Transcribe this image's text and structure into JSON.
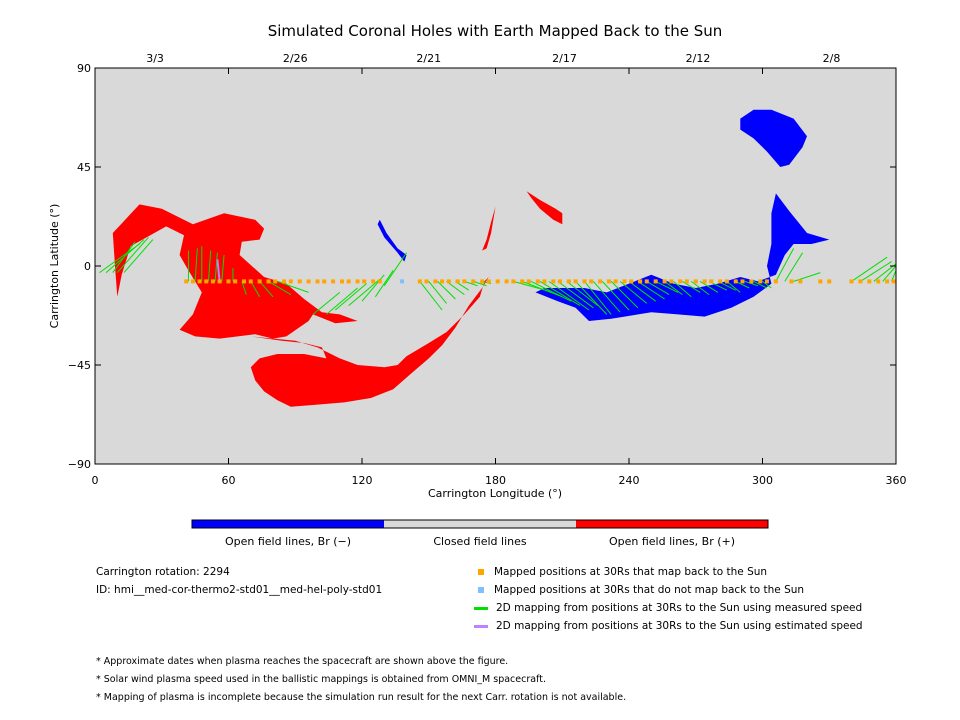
{
  "chart_data": {
    "type": "map",
    "title": "Simulated Coronal Holes with Earth Mapped Back to the Sun",
    "xlabel": "Carrington Longitude (°)",
    "ylabel": "Carrington Latitude (°)",
    "xlim": [
      0,
      360
    ],
    "ylim": [
      -90,
      90
    ],
    "x_ticks": [
      0,
      60,
      120,
      180,
      240,
      300,
      360
    ],
    "y_ticks": [
      {
        "value": 90,
        "label": "90"
      },
      {
        "value": 45,
        "label": "45"
      },
      {
        "value": 0,
        "label": "0"
      },
      {
        "value": -45,
        "label": "−45"
      },
      {
        "value": -90,
        "label": "−90"
      }
    ],
    "top_dates": [
      {
        "lon": 27,
        "label": "3/3"
      },
      {
        "lon": 90,
        "label": "2/26"
      },
      {
        "lon": 150,
        "label": "2/21"
      },
      {
        "lon": 211,
        "label": "2/17"
      },
      {
        "lon": 271,
        "label": "2/12"
      },
      {
        "lon": 331,
        "label": "2/8"
      }
    ],
    "background_color": "#d9d9d9",
    "colors": {
      "negative": "#0000ff",
      "positive": "#ff0000",
      "closed": "#d9d9d9",
      "mapped": "#ffa500",
      "unmapped": "#7fbfff",
      "measured": "#00e000",
      "estimated": "#c080ff"
    },
    "regions": [
      {
        "polarity": "positive",
        "points": [
          [
            8,
            15
          ],
          [
            20,
            28
          ],
          [
            30,
            26
          ],
          [
            44,
            19
          ],
          [
            58,
            24
          ],
          [
            72,
            21
          ],
          [
            76,
            17
          ],
          [
            74,
            12
          ],
          [
            66,
            11
          ],
          [
            65,
            5
          ],
          [
            76,
            -5
          ],
          [
            86,
            -8
          ],
          [
            94,
            -15
          ],
          [
            102,
            -21
          ],
          [
            110,
            -22
          ],
          [
            118,
            -25
          ],
          [
            108,
            -26
          ],
          [
            98,
            -22
          ],
          [
            96,
            -25
          ],
          [
            86,
            -32
          ],
          [
            80,
            -33
          ],
          [
            72,
            -31
          ],
          [
            56,
            -33
          ],
          [
            45,
            -32
          ],
          [
            38,
            -29
          ],
          [
            44,
            -22
          ],
          [
            48,
            -12
          ],
          [
            42,
            -2
          ],
          [
            38,
            5
          ],
          [
            40,
            14
          ],
          [
            32,
            18
          ],
          [
            16,
            9
          ],
          [
            12,
            -4
          ],
          [
            10,
            -14
          ],
          [
            9,
            0
          ]
        ]
      },
      {
        "polarity": "positive",
        "points": [
          [
            70,
            -32
          ],
          [
            90,
            -34
          ],
          [
            100,
            -37
          ],
          [
            110,
            -42
          ],
          [
            118,
            -45
          ],
          [
            130,
            -46
          ],
          [
            136,
            -45
          ],
          [
            140,
            -41
          ],
          [
            150,
            -35
          ],
          [
            158,
            -30
          ],
          [
            166,
            -22
          ],
          [
            173,
            -14
          ],
          [
            175,
            -7
          ],
          [
            177,
            -5
          ],
          [
            174,
            -10
          ],
          [
            168,
            -18
          ],
          [
            162,
            -28
          ],
          [
            156,
            -36
          ],
          [
            150,
            -42
          ],
          [
            142,
            -49
          ],
          [
            134,
            -56
          ],
          [
            124,
            -60
          ],
          [
            112,
            -62
          ],
          [
            100,
            -63
          ],
          [
            88,
            -64
          ],
          [
            82,
            -61
          ],
          [
            76,
            -57
          ],
          [
            72,
            -52
          ],
          [
            70,
            -46
          ],
          [
            74,
            -42
          ],
          [
            82,
            -40
          ],
          [
            94,
            -40
          ],
          [
            104,
            -42
          ],
          [
            102,
            -37
          ],
          [
            94,
            -35
          ],
          [
            84,
            -34
          ]
        ]
      },
      {
        "polarity": "positive",
        "points": [
          [
            174,
            7
          ],
          [
            176,
            12
          ],
          [
            178,
            20
          ],
          [
            180,
            27
          ],
          [
            178,
            15
          ],
          [
            176,
            8
          ]
        ]
      },
      {
        "polarity": "positive",
        "points": [
          [
            194,
            34
          ],
          [
            200,
            30
          ],
          [
            207,
            26
          ],
          [
            210,
            24
          ],
          [
            210,
            19
          ],
          [
            206,
            21
          ],
          [
            200,
            26
          ],
          [
            196,
            31
          ]
        ]
      },
      {
        "polarity": "negative",
        "points": [
          [
            128,
            21
          ],
          [
            131,
            15
          ],
          [
            136,
            8
          ],
          [
            140,
            5
          ],
          [
            139,
            2
          ],
          [
            136,
            6
          ],
          [
            130,
            13
          ],
          [
            127,
            19
          ]
        ]
      },
      {
        "polarity": "negative",
        "points": [
          [
            198,
            -12
          ],
          [
            208,
            -16
          ],
          [
            216,
            -19
          ],
          [
            222,
            -25
          ],
          [
            232,
            -24
          ],
          [
            238,
            -23
          ],
          [
            250,
            -21
          ],
          [
            262,
            -22
          ],
          [
            274,
            -23
          ],
          [
            286,
            -19
          ],
          [
            296,
            -14
          ],
          [
            304,
            -8
          ],
          [
            302,
            0
          ],
          [
            304,
            10
          ],
          [
            304,
            24
          ],
          [
            306,
            33
          ],
          [
            312,
            25
          ],
          [
            320,
            15
          ],
          [
            330,
            12
          ],
          [
            322,
            10
          ],
          [
            314,
            10
          ],
          [
            310,
            5
          ],
          [
            306,
            -4
          ],
          [
            298,
            -7
          ],
          [
            290,
            -5
          ],
          [
            280,
            -8
          ],
          [
            270,
            -10
          ],
          [
            260,
            -8
          ],
          [
            250,
            -4
          ],
          [
            240,
            -8
          ],
          [
            230,
            -12
          ],
          [
            220,
            -10
          ],
          [
            210,
            -10
          ],
          [
            202,
            -10
          ]
        ]
      },
      {
        "polarity": "negative",
        "points": [
          [
            290,
            67
          ],
          [
            296,
            71
          ],
          [
            304,
            71
          ],
          [
            314,
            67
          ],
          [
            320,
            59
          ],
          [
            318,
            54
          ],
          [
            312,
            46
          ],
          [
            308,
            45
          ],
          [
            302,
            52
          ],
          [
            296,
            58
          ],
          [
            290,
            62
          ]
        ]
      }
    ],
    "markers_mapped_lon": [
      41,
      44,
      47,
      50,
      53,
      56,
      60,
      63,
      67,
      70,
      74,
      78,
      81,
      85,
      88,
      92,
      96,
      100,
      103,
      107,
      111,
      114,
      118,
      121,
      125,
      128,
      146,
      149,
      153,
      156,
      159,
      163,
      166,
      170,
      174,
      177,
      181,
      185,
      188,
      192,
      195,
      199,
      202,
      206,
      209,
      213,
      216,
      220,
      223,
      227,
      231,
      234,
      238,
      241,
      245,
      248,
      252,
      256,
      259,
      263,
      266,
      270,
      274,
      277,
      281,
      284,
      288,
      291,
      295,
      299,
      302,
      306,
      313,
      317,
      326,
      330,
      340,
      344,
      348,
      352,
      356,
      359
    ],
    "markers_unmapped_lon": [
      138
    ],
    "marker_lat": -7,
    "lines_measured": [
      [
        2,
        -3,
        20,
        10
      ],
      [
        5,
        -3,
        22,
        12
      ],
      [
        8,
        -3,
        18,
        11
      ],
      [
        10,
        -3,
        24,
        13
      ],
      [
        13,
        -3,
        26,
        12
      ],
      [
        42,
        -7,
        42,
        7
      ],
      [
        45,
        -7,
        46,
        8
      ],
      [
        48,
        -7,
        48,
        9
      ],
      [
        51,
        -7,
        52,
        7
      ],
      [
        54,
        -7,
        55,
        6
      ],
      [
        57,
        -7,
        58,
        5
      ],
      [
        62,
        -7,
        62,
        -1
      ],
      [
        66,
        -7,
        68,
        -13
      ],
      [
        70,
        -7,
        74,
        -14
      ],
      [
        74,
        -7,
        80,
        -14
      ],
      [
        78,
        -7,
        88,
        -13
      ],
      [
        82,
        -7,
        96,
        -12
      ],
      [
        98,
        -22,
        110,
        -12
      ],
      [
        104,
        -22,
        118,
        -10
      ],
      [
        108,
        -20,
        122,
        -8
      ],
      [
        114,
        -18,
        128,
        -6
      ],
      [
        120,
        -16,
        130,
        -4
      ],
      [
        126,
        -14,
        134,
        -2
      ],
      [
        130,
        -9,
        140,
        6
      ],
      [
        146,
        -7,
        156,
        -20
      ],
      [
        150,
        -7,
        158,
        -17
      ],
      [
        154,
        -7,
        162,
        -15
      ],
      [
        158,
        -7,
        166,
        -13
      ],
      [
        162,
        -7,
        168,
        -11
      ],
      [
        166,
        -7,
        172,
        -9
      ],
      [
        170,
        -7,
        176,
        -9
      ],
      [
        174,
        -7,
        178,
        -8
      ],
      [
        188,
        -7,
        206,
        -12
      ],
      [
        192,
        -7,
        210,
        -14
      ],
      [
        196,
        -7,
        214,
        -16
      ],
      [
        200,
        -7,
        218,
        -18
      ],
      [
        204,
        -7,
        222,
        -20
      ],
      [
        208,
        -7,
        224,
        -19
      ],
      [
        212,
        -7,
        226,
        -18
      ],
      [
        216,
        -7,
        230,
        -22
      ],
      [
        220,
        -7,
        232,
        -22
      ],
      [
        224,
        -7,
        236,
        -21
      ],
      [
        228,
        -7,
        240,
        -20
      ],
      [
        232,
        -7,
        244,
        -19
      ],
      [
        236,
        -7,
        248,
        -17
      ],
      [
        240,
        -7,
        252,
        -16
      ],
      [
        244,
        -7,
        256,
        -15
      ],
      [
        248,
        -7,
        258,
        -13
      ],
      [
        252,
        -7,
        262,
        -12
      ],
      [
        256,
        -7,
        264,
        -13
      ],
      [
        260,
        -7,
        268,
        -14
      ],
      [
        264,
        -7,
        272,
        -12
      ],
      [
        268,
        -7,
        276,
        -13
      ],
      [
        272,
        -7,
        280,
        -12
      ],
      [
        276,
        -7,
        284,
        -11
      ],
      [
        280,
        -7,
        288,
        -11
      ],
      [
        284,
        -7,
        290,
        -12
      ],
      [
        288,
        -7,
        294,
        -10
      ],
      [
        292,
        -7,
        298,
        -9
      ],
      [
        296,
        -7,
        302,
        -10
      ],
      [
        300,
        -7,
        304,
        -10
      ],
      [
        306,
        -7,
        314,
        8
      ],
      [
        310,
        -7,
        318,
        6
      ],
      [
        314,
        -7,
        326,
        -3
      ],
      [
        340,
        -7,
        356,
        4
      ],
      [
        344,
        -7,
        358,
        2
      ],
      [
        350,
        -7,
        360,
        1
      ],
      [
        354,
        -7,
        360,
        0
      ],
      [
        358,
        -7,
        360,
        -2
      ]
    ],
    "lines_estimated": [
      [
        56,
        -7,
        55,
        3
      ]
    ],
    "colorbar": [
      {
        "label": "Open field lines, Br (−)",
        "color": "#0000ff"
      },
      {
        "label": "Closed field lines",
        "color": "#d9d9d9"
      },
      {
        "label": "Open field lines, Br (+)",
        "color": "#ff0000"
      }
    ],
    "legend": [
      {
        "kind": "square",
        "color": "#ffa500",
        "label": "Mapped positions at 30Rs that map back to the Sun"
      },
      {
        "kind": "square",
        "color": "#7fbfff",
        "label": "Mapped positions at 30Rs that do not map back to the Sun"
      },
      {
        "kind": "line",
        "color": "#00e000",
        "label": "2D mapping from positions at 30Rs to the Sun using measured speed"
      },
      {
        "kind": "line",
        "color": "#c080ff",
        "label": "2D mapping from positions at 30Rs to the Sun using estimated speed"
      }
    ]
  },
  "info": {
    "rotation_label": "Carrington rotation: 2294",
    "id_label": "ID: hmi__med-cor-thermo2-std01__med-hel-poly-std01"
  },
  "notes": [
    "* Approximate dates when plasma reaches the spacecraft are shown above the figure.",
    "* Solar wind plasma speed used in the ballistic mappings is obtained from OMNI_M spacecraft.",
    "* Mapping of plasma is incomplete because the simulation run result for the next Carr. rotation is not available."
  ]
}
